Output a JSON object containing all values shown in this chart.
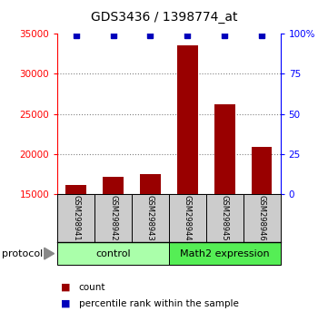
{
  "title": "GDS3436 / 1398774_at",
  "samples": [
    "GSM298941",
    "GSM298942",
    "GSM298943",
    "GSM298944",
    "GSM298945",
    "GSM298946"
  ],
  "counts": [
    16200,
    17200,
    17500,
    33500,
    26200,
    20900
  ],
  "baseline": 15000,
  "ylim_left": [
    15000,
    35000
  ],
  "ylim_right": [
    0,
    100
  ],
  "yticks_left": [
    15000,
    20000,
    25000,
    30000,
    35000
  ],
  "yticks_right": [
    0,
    25,
    50,
    75,
    100
  ],
  "groups": [
    {
      "label": "control",
      "indices": [
        0,
        1,
        2
      ],
      "color": "#aaffaa"
    },
    {
      "label": "Math2 expression",
      "indices": [
        3,
        4,
        5
      ],
      "color": "#55ee55"
    }
  ],
  "bar_color": "#990000",
  "percentile_color": "#0000bb",
  "sample_box_color": "#cccccc",
  "protocol_label": "protocol"
}
